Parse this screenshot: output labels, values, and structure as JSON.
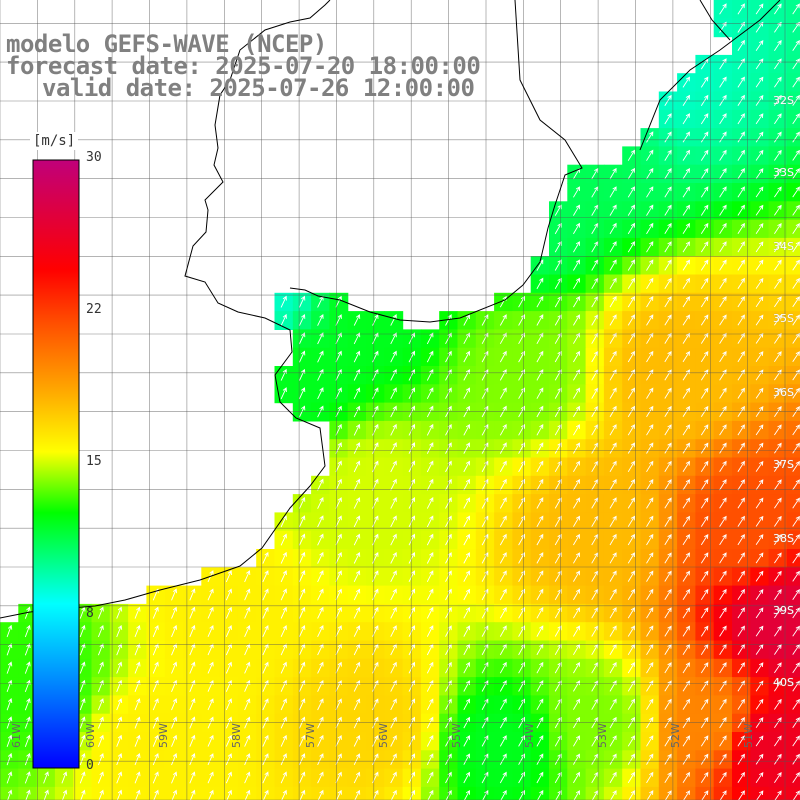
{
  "title": {
    "line1": "modelo GEFS-WAVE (NCEP)",
    "line2": "forecast date: 2025-07-20 18:00:00",
    "line3": "valid date: 2025-07-26 12:00:00"
  },
  "colorbar": {
    "unit": "[m/s]",
    "ticks": [
      "30",
      "22",
      "15",
      "8",
      "0"
    ],
    "min": 0,
    "max": 30
  },
  "lat_labels": [
    "32S",
    "33S",
    "34S",
    "35S",
    "36S",
    "37S",
    "38S",
    "39S",
    "40S"
  ],
  "lon_labels": [
    "61W",
    "60W",
    "59W",
    "58W",
    "57W",
    "56W",
    "55W",
    "54W",
    "53W",
    "52W",
    "51W"
  ],
  "chart_data": {
    "type": "heatmap",
    "field": "wind speed",
    "unit": "m/s",
    "lon_range": [
      -61,
      -50.3
    ],
    "lat_range": [
      -41.5,
      -31.2
    ],
    "colorscale_range": [
      0,
      30
    ],
    "wind_direction": "mostly toward north-northeast",
    "samples": [
      {
        "lon": -52.3,
        "lat": -32.2,
        "speed": 9
      },
      {
        "lon": -53.0,
        "lat": -33.0,
        "speed": 11
      },
      {
        "lon": -54.0,
        "lat": -34.0,
        "speed": 11
      },
      {
        "lon": -56.0,
        "lat": -35.2,
        "speed": 12
      },
      {
        "lon": -57.5,
        "lat": -35.0,
        "speed": 9
      },
      {
        "lon": -57.0,
        "lat": -36.0,
        "speed": 12
      },
      {
        "lon": -54.0,
        "lat": -36.0,
        "speed": 14
      },
      {
        "lon": -52.0,
        "lat": -36.0,
        "speed": 18
      },
      {
        "lon": -56.0,
        "lat": -37.5,
        "speed": 15
      },
      {
        "lon": -53.0,
        "lat": -38.0,
        "speed": 18
      },
      {
        "lon": -51.0,
        "lat": -38.0,
        "speed": 22
      },
      {
        "lon": -50.5,
        "lat": -39.2,
        "speed": 27
      },
      {
        "lon": -58.0,
        "lat": -39.0,
        "speed": 16
      },
      {
        "lon": -60.5,
        "lat": -40.0,
        "speed": 13
      },
      {
        "lon": -59.0,
        "lat": -40.8,
        "speed": 16
      },
      {
        "lon": -56.0,
        "lat": -40.5,
        "speed": 17
      },
      {
        "lon": -54.3,
        "lat": -40.8,
        "speed": 12
      },
      {
        "lon": -53.0,
        "lat": -40.5,
        "speed": 14
      },
      {
        "lon": -51.5,
        "lat": -40.5,
        "speed": 20
      },
      {
        "lon": -50.7,
        "lat": -40.8,
        "speed": 26
      }
    ]
  }
}
